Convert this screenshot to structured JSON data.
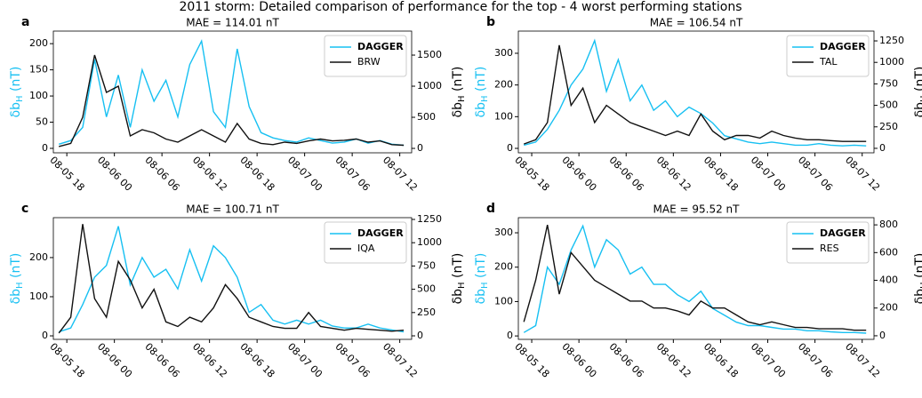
{
  "title": "2011 storm: Detailed comparison of performance for the top - 4 worst performing stations",
  "chart_data": [
    {
      "type": "line",
      "label": "a",
      "title": "MAE = 114.01 nT",
      "ylabel": [
        "δb",
        "H",
        " (nT)"
      ],
      "y2label": [
        "δb",
        "H",
        " (nT)"
      ],
      "x": [
        17,
        18.5,
        20,
        21.5,
        23,
        24.5,
        26,
        27.5,
        29,
        30.5,
        32,
        33.5,
        35,
        36.5,
        38,
        39.5,
        41,
        42.5,
        44,
        45.5,
        47,
        48.5,
        50,
        51.5,
        53,
        54.5,
        56,
        57.5,
        59,
        60.5
      ],
      "xlim": [
        16.3,
        61.5
      ],
      "xticks": [
        {
          "value": 18,
          "label": "08-05 18"
        },
        {
          "value": 24,
          "label": "08-06 00"
        },
        {
          "value": 30,
          "label": "08-06 06"
        },
        {
          "value": 36,
          "label": "08-06 12"
        },
        {
          "value": 42,
          "label": "08-06 18"
        },
        {
          "value": 48,
          "label": "08-07 00"
        },
        {
          "value": 54,
          "label": "08-07 06"
        },
        {
          "value": 60,
          "label": "08-07 12"
        }
      ],
      "ylim": [
        -8.5,
        224
      ],
      "yticks": [
        0,
        50,
        100,
        150,
        200
      ],
      "y2lim": [
        -71,
        1886
      ],
      "y2ticks": [
        0,
        500,
        1000,
        1500
      ],
      "legend": "upper right",
      "series": [
        {
          "name": "DAGGER",
          "color": "#17c0f2",
          "values": [
            8,
            15,
            40,
            170,
            60,
            140,
            40,
            150,
            90,
            130,
            60,
            160,
            205,
            70,
            40,
            190,
            80,
            30,
            20,
            15,
            12,
            20,
            15,
            10,
            12,
            18,
            10,
            15,
            8,
            6
          ]
        },
        {
          "name": "BRW",
          "color": "#111111",
          "axis": "y2",
          "values": [
            30,
            80,
            500,
            1500,
            900,
            1000,
            200,
            300,
            250,
            150,
            100,
            200,
            300,
            200,
            100,
            400,
            150,
            80,
            60,
            100,
            80,
            120,
            150,
            120,
            130,
            150,
            100,
            120,
            60,
            50
          ]
        }
      ]
    },
    {
      "type": "line",
      "label": "b",
      "title": "MAE = 106.54 nT",
      "ylabel": [
        "δb",
        "H",
        " (nT)"
      ],
      "y2label": [
        "δb",
        "H",
        " (nT)"
      ],
      "x": [
        17,
        18.5,
        20,
        21.5,
        23,
        24.5,
        26,
        27.5,
        29,
        30.5,
        32,
        33.5,
        35,
        36.5,
        38,
        39.5,
        41,
        42.5,
        44,
        45.5,
        47,
        48.5,
        50,
        51.5,
        53,
        54.5,
        56,
        57.5,
        59,
        60.5
      ],
      "xlim": [
        16.3,
        61.5
      ],
      "xticks": [
        {
          "value": 18,
          "label": "08-05 18"
        },
        {
          "value": 24,
          "label": "08-06 00"
        },
        {
          "value": 30,
          "label": "08-06 06"
        },
        {
          "value": 36,
          "label": "08-06 12"
        },
        {
          "value": 42,
          "label": "08-06 18"
        },
        {
          "value": 48,
          "label": "08-07 00"
        },
        {
          "value": 54,
          "label": "08-07 06"
        },
        {
          "value": 60,
          "label": "08-07 12"
        }
      ],
      "ylim": [
        -14,
        370
      ],
      "yticks": [
        0,
        100,
        200,
        300
      ],
      "y2lim": [
        -52,
        1364
      ],
      "y2ticks": [
        0,
        250,
        500,
        750,
        1000,
        1250
      ],
      "legend": "upper right",
      "series": [
        {
          "name": "DAGGER",
          "color": "#17c0f2",
          "values": [
            10,
            20,
            60,
            120,
            200,
            250,
            340,
            180,
            280,
            150,
            200,
            120,
            150,
            100,
            130,
            110,
            80,
            40,
            30,
            20,
            15,
            20,
            15,
            10,
            10,
            15,
            10,
            8,
            10,
            8
          ]
        },
        {
          "name": "TAL",
          "color": "#111111",
          "axis": "y2",
          "values": [
            50,
            100,
            300,
            1200,
            500,
            700,
            300,
            500,
            400,
            300,
            250,
            200,
            150,
            200,
            150,
            400,
            200,
            100,
            150,
            150,
            120,
            200,
            150,
            120,
            100,
            100,
            90,
            80,
            80,
            80
          ]
        }
      ]
    },
    {
      "type": "line",
      "label": "c",
      "title": "MAE = 100.71 nT",
      "ylabel": [
        "δb",
        "H",
        " (nT)"
      ],
      "y2label": [
        "δb",
        "H",
        " (nT)"
      ],
      "x": [
        17,
        18.5,
        20,
        21.5,
        23,
        24.5,
        26,
        27.5,
        29,
        30.5,
        32,
        33.5,
        35,
        36.5,
        38,
        39.5,
        41,
        42.5,
        44,
        45.5,
        47,
        48.5,
        50,
        51.5,
        53,
        54.5,
        56,
        57.5,
        59,
        60.5
      ],
      "xlim": [
        16.3,
        61.5
      ],
      "xticks": [
        {
          "value": 18,
          "label": "08-05 18"
        },
        {
          "value": 24,
          "label": "08-06 00"
        },
        {
          "value": 30,
          "label": "08-06 06"
        },
        {
          "value": 36,
          "label": "08-06 12"
        },
        {
          "value": 42,
          "label": "08-06 18"
        },
        {
          "value": 48,
          "label": "08-07 00"
        },
        {
          "value": 54,
          "label": "08-07 06"
        },
        {
          "value": 60,
          "label": "08-07 12"
        }
      ],
      "ylim": [
        -9,
        302
      ],
      "yticks": [
        0,
        100,
        200
      ],
      "y2lim": [
        -38,
        1269
      ],
      "y2ticks": [
        0,
        250,
        500,
        750,
        1000,
        1250
      ],
      "legend": "upper right",
      "series": [
        {
          "name": "DAGGER",
          "color": "#17c0f2",
          "values": [
            10,
            20,
            80,
            150,
            180,
            280,
            130,
            200,
            150,
            170,
            120,
            220,
            140,
            230,
            200,
            150,
            60,
            80,
            40,
            30,
            40,
            30,
            40,
            25,
            20,
            20,
            30,
            20,
            15,
            10
          ]
        },
        {
          "name": "IQA",
          "color": "#111111",
          "axis": "y2",
          "values": [
            30,
            200,
            1200,
            400,
            200,
            800,
            600,
            300,
            500,
            150,
            100,
            200,
            150,
            300,
            550,
            400,
            200,
            150,
            100,
            80,
            80,
            250,
            100,
            80,
            60,
            80,
            70,
            60,
            50,
            60
          ]
        }
      ]
    },
    {
      "type": "line",
      "label": "d",
      "title": "MAE = 95.52 nT",
      "ylabel": [
        "δb",
        "H",
        " (nT)"
      ],
      "y2label": [
        "δb",
        "H",
        " (nT)"
      ],
      "x": [
        17,
        18.5,
        20,
        21.5,
        23,
        24.5,
        26,
        27.5,
        29,
        30.5,
        32,
        33.5,
        35,
        36.5,
        38,
        39.5,
        41,
        42.5,
        44,
        45.5,
        47,
        48.5,
        50,
        51.5,
        53,
        54.5,
        56,
        57.5,
        59,
        60.5
      ],
      "xlim": [
        16.3,
        61.5
      ],
      "xticks": [
        {
          "value": 18,
          "label": "08-05 18"
        },
        {
          "value": 24,
          "label": "08-06 00"
        },
        {
          "value": 30,
          "label": "08-06 06"
        },
        {
          "value": 36,
          "label": "08-06 12"
        },
        {
          "value": 42,
          "label": "08-06 18"
        },
        {
          "value": 48,
          "label": "08-07 00"
        },
        {
          "value": 54,
          "label": "08-07 06"
        },
        {
          "value": 60,
          "label": "08-07 12"
        }
      ],
      "ylim": [
        -10,
        344
      ],
      "yticks": [
        0,
        100,
        200,
        300
      ],
      "y2lim": [
        -26,
        852
      ],
      "y2ticks": [
        0,
        200,
        400,
        600,
        800
      ],
      "legend": "upper right",
      "series": [
        {
          "name": "DAGGER",
          "color": "#17c0f2",
          "values": [
            10,
            30,
            200,
            150,
            250,
            320,
            200,
            280,
            250,
            180,
            200,
            150,
            150,
            120,
            100,
            130,
            80,
            60,
            40,
            30,
            30,
            25,
            20,
            20,
            15,
            15,
            12,
            10,
            10,
            8
          ]
        },
        {
          "name": "RES",
          "color": "#111111",
          "axis": "y2",
          "values": [
            100,
            400,
            800,
            300,
            600,
            500,
            400,
            350,
            300,
            250,
            250,
            200,
            200,
            180,
            150,
            250,
            200,
            200,
            150,
            100,
            80,
            100,
            80,
            60,
            60,
            50,
            50,
            50,
            40,
            40
          ]
        }
      ]
    }
  ]
}
